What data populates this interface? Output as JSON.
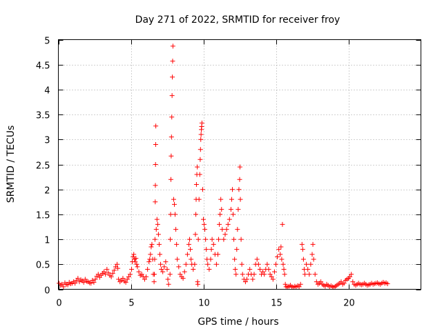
{
  "chart_data": {
    "type": "scatter",
    "title": "Day 271 of 2022, SRMTID for receiver froy",
    "xlabel": "GPS time / hours",
    "ylabel": "SRMTID / TECUs",
    "xlim": [
      0,
      25
    ],
    "ylim": [
      0,
      5
    ],
    "xticks": [
      0,
      5,
      10,
      15,
      20
    ],
    "xtick_labels": [
      "0",
      "5",
      "10",
      "15",
      "20"
    ],
    "yticks": [
      0,
      0.5,
      1,
      1.5,
      2,
      2.5,
      3,
      3.5,
      4,
      4.5,
      5
    ],
    "ytick_labels": [
      "0",
      "0.5",
      "1",
      "1.5",
      "2",
      "2.5",
      "3",
      "3.5",
      "4",
      "4.5",
      "5"
    ],
    "grid": true,
    "marker": "+",
    "color": "#ff0000",
    "series": [
      {
        "name": "SRMTID",
        "points": [
          [
            0.05,
            0.12
          ],
          [
            0.15,
            0.08
          ],
          [
            0.25,
            0.1
          ],
          [
            0.35,
            0.05
          ],
          [
            0.45,
            0.13
          ],
          [
            0.55,
            0.1
          ],
          [
            0.65,
            0.09
          ],
          [
            0.75,
            0.14
          ],
          [
            0.85,
            0.11
          ],
          [
            0.95,
            0.12
          ],
          [
            1.05,
            0.15
          ],
          [
            1.15,
            0.12
          ],
          [
            1.25,
            0.18
          ],
          [
            1.35,
            0.22
          ],
          [
            1.45,
            0.15
          ],
          [
            1.55,
            0.19
          ],
          [
            1.65,
            0.17
          ],
          [
            1.75,
            0.14
          ],
          [
            1.85,
            0.2
          ],
          [
            1.95,
            0.16
          ],
          [
            2.05,
            0.15
          ],
          [
            2.15,
            0.13
          ],
          [
            2.25,
            0.12
          ],
          [
            2.35,
            0.18
          ],
          [
            2.45,
            0.14
          ],
          [
            2.55,
            0.2
          ],
          [
            2.65,
            0.26
          ],
          [
            2.75,
            0.3
          ],
          [
            2.85,
            0.24
          ],
          [
            2.95,
            0.28
          ],
          [
            3.05,
            0.32
          ],
          [
            3.15,
            0.35
          ],
          [
            3.25,
            0.3
          ],
          [
            3.35,
            0.4
          ],
          [
            3.45,
            0.33
          ],
          [
            3.55,
            0.28
          ],
          [
            3.65,
            0.25
          ],
          [
            3.75,
            0.32
          ],
          [
            3.85,
            0.38
          ],
          [
            3.95,
            0.45
          ],
          [
            4.05,
            0.5
          ],
          [
            4.1,
            0.42
          ],
          [
            4.15,
            0.2
          ],
          [
            4.25,
            0.15
          ],
          [
            4.35,
            0.18
          ],
          [
            4.45,
            0.22
          ],
          [
            4.55,
            0.16
          ],
          [
            4.65,
            0.14
          ],
          [
            4.75,
            0.2
          ],
          [
            4.85,
            0.25
          ],
          [
            4.95,
            0.3
          ],
          [
            5.05,
            0.4
          ],
          [
            5.1,
            0.55
          ],
          [
            5.15,
            0.65
          ],
          [
            5.2,
            0.7
          ],
          [
            5.25,
            0.6
          ],
          [
            5.3,
            0.55
          ],
          [
            5.35,
            0.62
          ],
          [
            5.4,
            0.5
          ],
          [
            5.45,
            0.45
          ],
          [
            5.55,
            0.35
          ],
          [
            5.65,
            0.28
          ],
          [
            5.75,
            0.3
          ],
          [
            5.85,
            0.25
          ],
          [
            5.95,
            0.2
          ],
          [
            6.05,
            0.25
          ],
          [
            6.15,
            0.4
          ],
          [
            6.25,
            0.55
          ],
          [
            6.3,
            0.6
          ],
          [
            6.35,
            0.7
          ],
          [
            6.4,
            0.85
          ],
          [
            6.45,
            0.9
          ],
          [
            6.5,
            0.6
          ],
          [
            6.55,
            0.3
          ],
          [
            6.6,
            0.15
          ],
          [
            6.62,
            0.3
          ],
          [
            6.64,
            0.6
          ],
          [
            6.66,
            1.0
          ],
          [
            6.68,
            1.75
          ],
          [
            6.69,
            2.08
          ],
          [
            6.7,
            2.5
          ],
          [
            6.71,
            2.9
          ],
          [
            6.72,
            3.27
          ],
          [
            6.75,
            1.2
          ],
          [
            6.8,
            1.4
          ],
          [
            6.85,
            1.3
          ],
          [
            6.9,
            1.1
          ],
          [
            6.95,
            0.9
          ],
          [
            7.0,
            0.7
          ],
          [
            7.05,
            0.5
          ],
          [
            7.1,
            0.4
          ],
          [
            7.2,
            0.35
          ],
          [
            7.3,
            0.45
          ],
          [
            7.4,
            0.55
          ],
          [
            7.5,
            0.4
          ],
          [
            7.55,
            0.2
          ],
          [
            7.6,
            0.1
          ],
          [
            7.7,
            0.3
          ],
          [
            7.72,
            1.0
          ],
          [
            7.74,
            1.5
          ],
          [
            7.76,
            2.2
          ],
          [
            7.78,
            2.67
          ],
          [
            7.8,
            3.05
          ],
          [
            7.82,
            3.45
          ],
          [
            7.84,
            3.88
          ],
          [
            7.86,
            4.25
          ],
          [
            7.88,
            4.57
          ],
          [
            7.9,
            4.87
          ],
          [
            7.95,
            1.8
          ],
          [
            8.0,
            1.7
          ],
          [
            8.05,
            1.5
          ],
          [
            8.1,
            1.2
          ],
          [
            8.15,
            0.9
          ],
          [
            8.2,
            0.6
          ],
          [
            8.3,
            0.45
          ],
          [
            8.4,
            0.3
          ],
          [
            8.5,
            0.25
          ],
          [
            8.6,
            0.22
          ],
          [
            8.7,
            0.35
          ],
          [
            8.8,
            0.5
          ],
          [
            8.9,
            0.7
          ],
          [
            9.0,
            0.9
          ],
          [
            9.05,
            1.0
          ],
          [
            9.1,
            0.8
          ],
          [
            9.15,
            0.6
          ],
          [
            9.2,
            0.5
          ],
          [
            9.3,
            0.4
          ],
          [
            9.4,
            0.5
          ],
          [
            9.45,
            1.1
          ],
          [
            9.48,
            1.5
          ],
          [
            9.5,
            1.8
          ],
          [
            9.52,
            2.1
          ],
          [
            9.55,
            2.3
          ],
          [
            9.58,
            2.45
          ],
          [
            9.6,
            0.15
          ],
          [
            9.62,
            0.1
          ],
          [
            9.65,
            1.0
          ],
          [
            9.7,
            1.8
          ],
          [
            9.75,
            2.3
          ],
          [
            9.78,
            2.6
          ],
          [
            9.8,
            2.8
          ],
          [
            9.82,
            3.0
          ],
          [
            9.84,
            3.1
          ],
          [
            9.86,
            3.2
          ],
          [
            9.88,
            3.26
          ],
          [
            9.9,
            3.33
          ],
          [
            9.95,
            2.0
          ],
          [
            10.0,
            1.4
          ],
          [
            10.05,
            1.3
          ],
          [
            10.1,
            1.2
          ],
          [
            10.15,
            1.0
          ],
          [
            10.2,
            0.8
          ],
          [
            10.25,
            0.6
          ],
          [
            10.3,
            0.5
          ],
          [
            10.4,
            0.4
          ],
          [
            10.5,
            0.6
          ],
          [
            10.55,
            0.8
          ],
          [
            10.6,
            1.0
          ],
          [
            10.7,
            0.9
          ],
          [
            10.8,
            0.7
          ],
          [
            10.9,
            0.5
          ],
          [
            11.0,
            0.7
          ],
          [
            11.05,
            1.0
          ],
          [
            11.1,
            1.3
          ],
          [
            11.15,
            1.5
          ],
          [
            11.2,
            1.8
          ],
          [
            11.25,
            1.6
          ],
          [
            11.3,
            1.2
          ],
          [
            11.4,
            1.0
          ],
          [
            11.5,
            1.1
          ],
          [
            11.6,
            1.2
          ],
          [
            11.7,
            1.3
          ],
          [
            11.8,
            1.4
          ],
          [
            11.9,
            1.6
          ],
          [
            11.95,
            1.8
          ],
          [
            12.0,
            2.0
          ],
          [
            12.05,
            1.5
          ],
          [
            12.1,
            1.0
          ],
          [
            12.15,
            0.6
          ],
          [
            12.2,
            0.4
          ],
          [
            12.25,
            0.3
          ],
          [
            12.3,
            0.8
          ],
          [
            12.35,
            1.2
          ],
          [
            12.4,
            1.6
          ],
          [
            12.45,
            2.0
          ],
          [
            12.5,
            2.2
          ],
          [
            12.52,
            2.45
          ],
          [
            12.55,
            1.8
          ],
          [
            12.6,
            1.0
          ],
          [
            12.65,
            0.5
          ],
          [
            12.7,
            0.3
          ],
          [
            12.8,
            0.2
          ],
          [
            12.9,
            0.15
          ],
          [
            13.0,
            0.2
          ],
          [
            13.1,
            0.3
          ],
          [
            13.2,
            0.4
          ],
          [
            13.3,
            0.3
          ],
          [
            13.4,
            0.2
          ],
          [
            13.5,
            0.3
          ],
          [
            13.6,
            0.5
          ],
          [
            13.7,
            0.6
          ],
          [
            13.8,
            0.5
          ],
          [
            13.9,
            0.4
          ],
          [
            14.0,
            0.3
          ],
          [
            14.1,
            0.35
          ],
          [
            14.2,
            0.3
          ],
          [
            14.3,
            0.4
          ],
          [
            14.4,
            0.5
          ],
          [
            14.5,
            0.4
          ],
          [
            14.6,
            0.3
          ],
          [
            14.7,
            0.25
          ],
          [
            14.8,
            0.2
          ],
          [
            14.9,
            0.35
          ],
          [
            15.0,
            0.5
          ],
          [
            15.1,
            0.65
          ],
          [
            15.2,
            0.8
          ],
          [
            15.3,
            0.7
          ],
          [
            15.35,
            0.85
          ],
          [
            15.4,
            0.6
          ],
          [
            15.45,
            1.3
          ],
          [
            15.5,
            0.5
          ],
          [
            15.55,
            0.4
          ],
          [
            15.6,
            0.3
          ],
          [
            15.65,
            0.1
          ],
          [
            15.7,
            0.05
          ],
          [
            15.8,
            0.04
          ],
          [
            15.9,
            0.06
          ],
          [
            16.0,
            0.08
          ],
          [
            16.1,
            0.05
          ],
          [
            16.2,
            0.04
          ],
          [
            16.3,
            0.06
          ],
          [
            16.4,
            0.05
          ],
          [
            16.5,
            0.07
          ],
          [
            16.6,
            0.05
          ],
          [
            16.7,
            0.1
          ],
          [
            16.8,
            0.9
          ],
          [
            16.85,
            0.8
          ],
          [
            16.9,
            0.6
          ],
          [
            16.95,
            0.4
          ],
          [
            17.0,
            0.3
          ],
          [
            17.1,
            0.5
          ],
          [
            17.2,
            0.4
          ],
          [
            17.3,
            0.3
          ],
          [
            17.4,
            0.5
          ],
          [
            17.5,
            0.7
          ],
          [
            17.55,
            0.9
          ],
          [
            17.6,
            0.6
          ],
          [
            17.7,
            0.3
          ],
          [
            17.8,
            0.15
          ],
          [
            17.9,
            0.1
          ],
          [
            18.0,
            0.12
          ],
          [
            18.1,
            0.15
          ],
          [
            18.2,
            0.1
          ],
          [
            18.3,
            0.08
          ],
          [
            18.4,
            0.06
          ],
          [
            18.5,
            0.1
          ],
          [
            18.6,
            0.08
          ],
          [
            18.7,
            0.05
          ],
          [
            18.8,
            0.07
          ],
          [
            18.9,
            0.05
          ],
          [
            19.0,
            0.04
          ],
          [
            19.1,
            0.06
          ],
          [
            19.2,
            0.08
          ],
          [
            19.3,
            0.1
          ],
          [
            19.4,
            0.12
          ],
          [
            19.5,
            0.15
          ],
          [
            19.6,
            0.1
          ],
          [
            19.7,
            0.12
          ],
          [
            19.8,
            0.18
          ],
          [
            19.9,
            0.2
          ],
          [
            20.0,
            0.22
          ],
          [
            20.1,
            0.25
          ],
          [
            20.2,
            0.3
          ],
          [
            20.3,
            0.15
          ],
          [
            20.4,
            0.1
          ],
          [
            20.5,
            0.08
          ],
          [
            20.6,
            0.1
          ],
          [
            20.7,
            0.12
          ],
          [
            20.8,
            0.1
          ],
          [
            20.9,
            0.09
          ],
          [
            21.0,
            0.1
          ],
          [
            21.1,
            0.12
          ],
          [
            21.2,
            0.1
          ],
          [
            21.3,
            0.08
          ],
          [
            21.4,
            0.09
          ],
          [
            21.5,
            0.1
          ],
          [
            21.6,
            0.12
          ],
          [
            21.7,
            0.1
          ],
          [
            21.8,
            0.11
          ],
          [
            21.9,
            0.12
          ],
          [
            22.0,
            0.13
          ],
          [
            22.1,
            0.11
          ],
          [
            22.2,
            0.1
          ],
          [
            22.3,
            0.12
          ],
          [
            22.4,
            0.14
          ],
          [
            22.5,
            0.12
          ],
          [
            22.6,
            0.13
          ],
          [
            22.7,
            0.11
          ]
        ]
      }
    ]
  }
}
